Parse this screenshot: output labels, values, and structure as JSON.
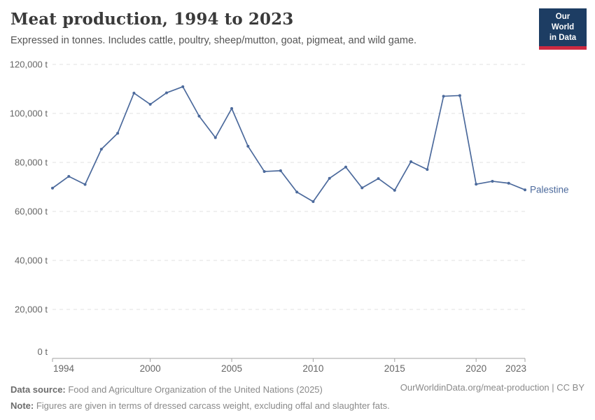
{
  "header": {
    "title": "Meat production, 1994 to 2023",
    "subtitle": "Expressed in tonnes. Includes cattle, poultry, sheep/mutton, goat, pigmeat, and wild game.",
    "logo": {
      "line1": "Our World",
      "line2": "in Data"
    }
  },
  "chart_data": {
    "type": "line",
    "title": "Meat production, 1994 to 2023",
    "xlabel": "",
    "ylabel": "",
    "xlim": [
      1994,
      2023
    ],
    "ylim": [
      0,
      120000
    ],
    "grid": true,
    "legend_position": "end-of-line",
    "x_ticks": [
      1994,
      2000,
      2005,
      2010,
      2015,
      2020,
      2023
    ],
    "y_ticks": [
      0,
      20000,
      40000,
      60000,
      80000,
      100000,
      120000
    ],
    "y_tick_suffix": " t",
    "series": [
      {
        "name": "Palestine",
        "color": "#4c6a9c",
        "x": [
          1994,
          1995,
          1996,
          1997,
          1998,
          1999,
          2000,
          2001,
          2002,
          2003,
          2004,
          2005,
          2006,
          2007,
          2008,
          2009,
          2010,
          2011,
          2012,
          2013,
          2014,
          2015,
          2016,
          2017,
          2018,
          2019,
          2020,
          2021,
          2022,
          2023
        ],
        "values": [
          69500,
          74300,
          71000,
          85400,
          91900,
          108300,
          103700,
          108400,
          110900,
          98900,
          90100,
          102000,
          86600,
          76300,
          76600,
          67900,
          64000,
          73500,
          78100,
          69600,
          73400,
          68600,
          80300,
          77100,
          107000,
          107300,
          71100,
          72300,
          71500,
          68800
        ]
      }
    ]
  },
  "footer": {
    "data_source_label": "Data source:",
    "data_source": " Food and Agriculture Organization of the United Nations (2025)",
    "note_label": "Note:",
    "note": " Figures are given in terms of dressed carcass weight, excluding offal and slaughter fats.",
    "link": "OurWorldinData.org/meat-production | CC BY"
  },
  "colors": {
    "line": "#4c6a9c",
    "grid": "#e2e2e2",
    "axis": "#a1a1a1",
    "tick_label": "#666666",
    "entity_label": "#4c6a9c",
    "logo_bg": "#1d3d63",
    "logo_red": "#cc2a41"
  }
}
